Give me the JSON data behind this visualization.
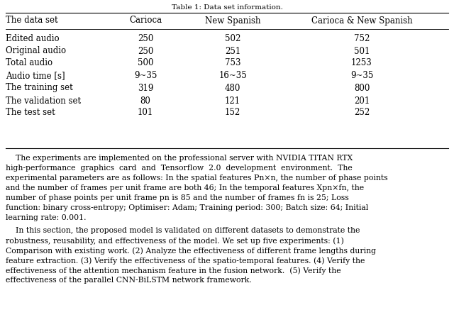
{
  "title": "Table 1: Data set information.",
  "headers": [
    "The data set",
    "Carioca",
    "New Spanish",
    "Carioca & New Spanish"
  ],
  "rows": [
    [
      "Edited audio",
      "250",
      "502",
      "752"
    ],
    [
      "Original audio",
      "250",
      "251",
      "501"
    ],
    [
      "Total audio",
      "500",
      "753",
      "1253"
    ],
    [
      "Audio time [s]",
      "9~35",
      "16~35",
      "9~35"
    ],
    [
      "The training set",
      "319",
      "480",
      "800"
    ],
    [
      "The validation set",
      "80",
      "121",
      "201"
    ],
    [
      "The test set",
      "101",
      "152",
      "252"
    ]
  ],
  "para1_lines": [
    "    The experiments are implemented on the professional server with NVIDIA TITAN RTX",
    "high-performance  graphics  card  and  Tensorflow  2.0  development  environment.  The",
    "experimental parameters are as follows: In the spatial features Pn×n, the number of phase points",
    "and the number of frames per unit frame are both 46; In the temporal features Xpn×fn, the",
    "number of phase points per unit frame pn is 85 and the number of frames fn is 25; Loss",
    "function: binary cross-entropy; Optimiser: Adam; Training period: 300; Batch size: 64; Initial",
    "learning rate: 0.001."
  ],
  "para2_lines": [
    "    In this section, the proposed model is validated on different datasets to demonstrate the",
    "robustness, reusability, and effectiveness of the model. We set up five experiments: (1)",
    "Comparison with existing work. (2) Analyze the effectiveness of different frame lengths during",
    "feature extraction. (3) Verify the effectiveness of the spatio-temporal features. (4) Verify the",
    "effectiveness of the attention mechanism feature in the fusion network.  (5) Verify the",
    "effectiveness of the parallel CNN-BiLSTM network framework."
  ],
  "bg_color": "#ffffff",
  "text_color": "#000000"
}
